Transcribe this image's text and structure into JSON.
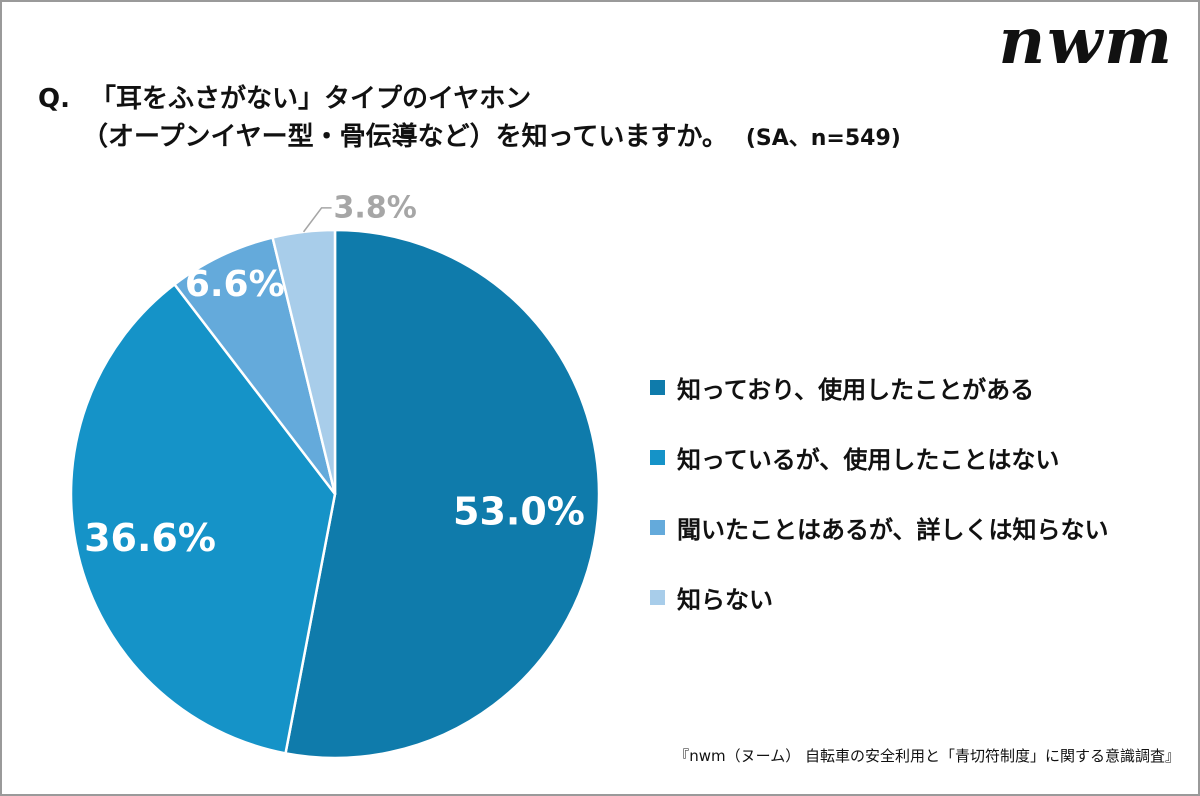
{
  "logo": "nwm",
  "question": {
    "prefix": "Q.",
    "line1": "「耳をふさがない」タイプのイヤホン",
    "line2": "（オープンイヤー型・骨伝導など）を知っていますか。",
    "meta": "(SA、n=549)"
  },
  "source": "『nwm（ヌーム） 自転車の安全利用と「青切符制度」に関する意識調査』",
  "chart_data": {
    "type": "pie",
    "title": "「耳をふさがない」タイプのイヤホン（オープンイヤー型・骨伝導など）を知っていますか。",
    "legend_position": "right",
    "slices": [
      {
        "label": "知っており、使用したことがある",
        "value": 53.0,
        "display": "53.0%",
        "color": "#0f7bab",
        "label_color": "#ffffff"
      },
      {
        "label": "知っているが、使用したことはない",
        "value": 36.6,
        "display": "36.6%",
        "color": "#1593c8",
        "label_color": "#ffffff"
      },
      {
        "label": "聞いたことはあるが、詳しくは知らない",
        "value": 6.6,
        "display": "6.6%",
        "color": "#64aadb",
        "label_color": "#ffffff"
      },
      {
        "label": "知らない",
        "value": 3.8,
        "display": "3.8%",
        "color": "#a8cdea",
        "label_color": "#a6a6a6"
      }
    ]
  }
}
